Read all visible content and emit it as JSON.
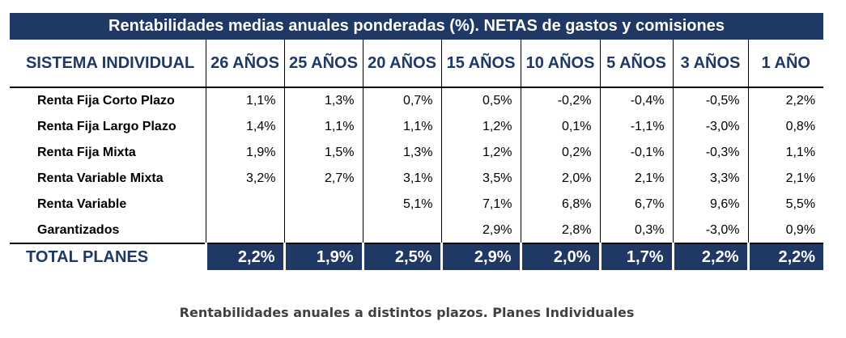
{
  "table": {
    "banner": "Rentabilidades medias anuales ponderadas (%). NETAS de gastos y comisiones",
    "row_header_label": "SISTEMA INDIVIDUAL",
    "columns": [
      "26 AÑOS",
      "25 AÑOS",
      "20 AÑOS",
      "15 AÑOS",
      "10 AÑOS",
      "5 AÑOS",
      "3 AÑOS",
      "1 AÑO"
    ],
    "rows": [
      {
        "label": "Renta Fija Corto Plazo",
        "values": [
          "1,1%",
          "1,3%",
          "0,7%",
          "0,5%",
          "-0,2%",
          "-0,4%",
          "-0,5%",
          "2,2%"
        ]
      },
      {
        "label": "Renta Fija Largo Plazo",
        "values": [
          "1,4%",
          "1,1%",
          "1,1%",
          "1,2%",
          "0,1%",
          "-1,1%",
          "-3,0%",
          "0,8%"
        ]
      },
      {
        "label": "Renta Fija Mixta",
        "values": [
          "1,9%",
          "1,5%",
          "1,3%",
          "1,2%",
          "0,2%",
          "-0,1%",
          "-0,3%",
          "1,1%"
        ]
      },
      {
        "label": "Renta Variable Mixta",
        "values": [
          "3,2%",
          "2,7%",
          "3,1%",
          "3,5%",
          "2,0%",
          "2,1%",
          "3,3%",
          "2,1%"
        ]
      },
      {
        "label": "Renta Variable",
        "values": [
          "",
          "",
          "5,1%",
          "7,1%",
          "6,8%",
          "6,7%",
          "9,6%",
          "5,5%"
        ]
      },
      {
        "label": "Garantizados",
        "values": [
          "",
          "",
          "",
          "2,9%",
          "2,8%",
          "0,3%",
          "-3,0%",
          "0,9%"
        ]
      }
    ],
    "total": {
      "label": "TOTAL PLANES",
      "values": [
        "2,2%",
        "1,9%",
        "2,5%",
        "2,9%",
        "2,0%",
        "1,7%",
        "2,2%",
        "2,2%"
      ]
    }
  },
  "caption": "Rentabilidades anuales a distintos plazos. Planes Individuales"
}
